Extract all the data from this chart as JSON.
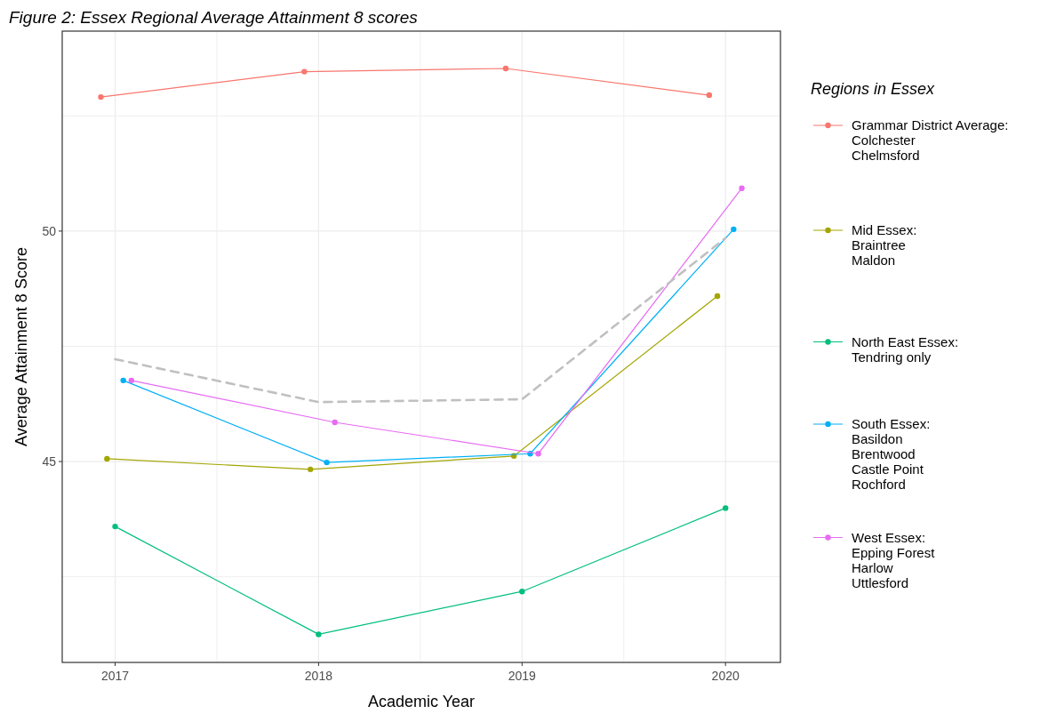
{
  "chart_data": {
    "type": "line",
    "title": "Figure 2: Essex Regional Average Attainment 8 scores",
    "xlabel": "Academic Year",
    "ylabel": "Average Attainment 8 Score",
    "legend_title": "Regions in Essex",
    "xlim": [
      2016.74,
      2020.27
    ],
    "ylim": [
      40.64,
      54.34
    ],
    "xticks": [
      2017,
      {
        "value": 2017.5,
        "label": null
      },
      2018,
      {
        "value": 2018.5,
        "label": null
      },
      2019,
      {
        "value": 2019.5,
        "label": null
      },
      2020
    ],
    "yticks": [
      {
        "value": 42.5,
        "label": null
      },
      45,
      {
        "value": 47.5,
        "label": null
      },
      50,
      {
        "value": 52.5,
        "label": null
      }
    ],
    "grid": true,
    "legend": "right",
    "marker": "circle",
    "series": [
      {
        "name": "Grammar District Average:\nColchester\nChelmsford",
        "color": "#f8766d",
        "x": [
          2016.93,
          2017.93,
          2018.92,
          2019.92
        ],
        "values": [
          52.91,
          53.46,
          53.53,
          52.95
        ]
      },
      {
        "name": "Mid Essex:\nBraintree\nMaldon",
        "color": "#a3a500",
        "x": [
          2016.96,
          2017.96,
          2018.96,
          2019.96
        ],
        "values": [
          45.06,
          44.83,
          45.12,
          48.59
        ]
      },
      {
        "name": "North East Essex:\nTendring only",
        "color": "#00bf7d",
        "x": [
          2017,
          2018,
          2019,
          2020
        ],
        "values": [
          43.59,
          41.25,
          42.18,
          43.99
        ]
      },
      {
        "name": "South Essex:\nBasildon\nBrentwood\nCastle Point\nRochford",
        "color": "#00b0f6",
        "x": [
          2017.04,
          2018.04,
          2019.04,
          2020.04
        ],
        "values": [
          46.76,
          44.98,
          45.17,
          50.04
        ]
      },
      {
        "name": "West Essex:\nEpping Forest\nHarlow\nUttlesford",
        "color": "#e76bf3",
        "x": [
          2017.08,
          2018.08,
          2019.08,
          2020.08
        ],
        "values": [
          46.76,
          45.85,
          45.17,
          50.93
        ]
      },
      {
        "color": "#c0c0c0",
        "line_style": "dashed",
        "marker": "none",
        "x": [
          2017,
          2018,
          2019,
          2020
        ],
        "values": [
          47.22,
          46.29,
          46.35,
          49.85
        ]
      }
    ]
  }
}
